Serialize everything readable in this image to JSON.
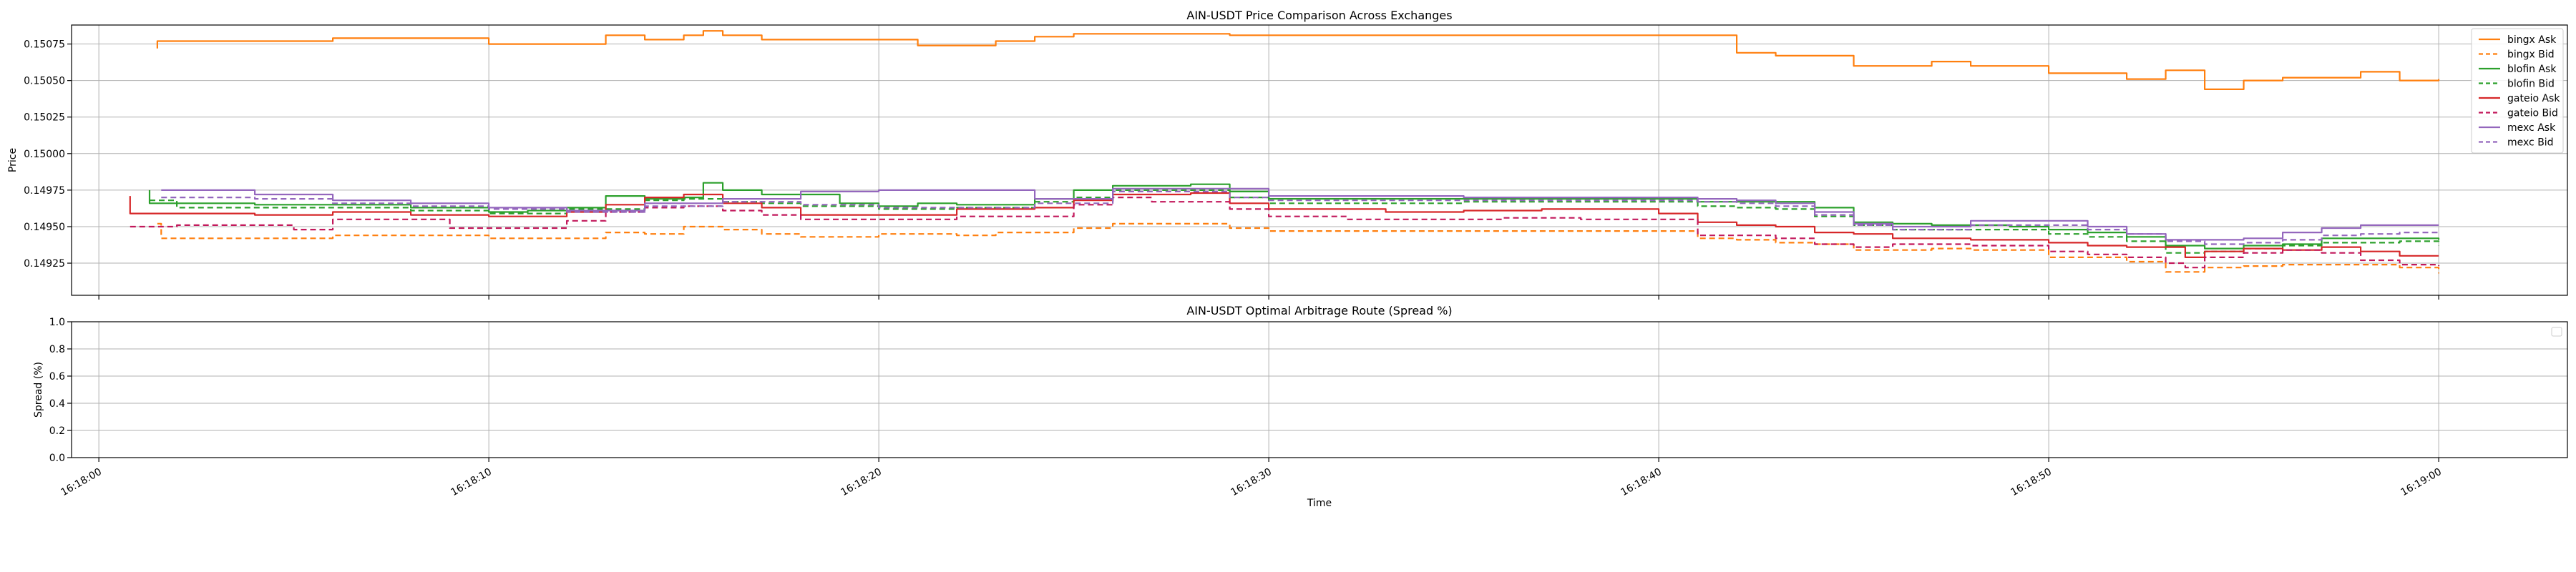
{
  "chart_data": [
    {
      "type": "line",
      "title": "AIN-USDT Price Comparison Across Exchanges",
      "xlabel": "",
      "ylabel": "Price",
      "x_ticks": [
        "16:18:00",
        "16:18:10",
        "16:18:20",
        "16:18:30",
        "16:18:40",
        "16:18:50",
        "16:19:00"
      ],
      "y_ticks": [
        "0.14925",
        "0.14950",
        "0.14975",
        "0.15000",
        "0.15025",
        "0.15050",
        "0.15075"
      ],
      "xlim": [
        "16:17:59.3",
        "16:19:03.3"
      ],
      "ylim": [
        0.14903,
        0.15088
      ],
      "grid": true,
      "legend_position": "top-right",
      "series": [
        {
          "name": "bingx Ask",
          "color": "#ff7f0e",
          "dash": "solid",
          "x": [
            "16:18:01.5",
            "16:18:01.5",
            "16:18:05",
            "16:18:06",
            "16:18:07",
            "16:18:08",
            "16:18:09",
            "16:18:10",
            "16:18:11",
            "16:18:12",
            "16:18:13",
            "16:18:14",
            "16:18:15",
            "16:18:15.5",
            "16:18:16",
            "16:18:17",
            "16:18:18",
            "16:18:19",
            "16:18:20",
            "16:18:21",
            "16:18:22",
            "16:18:23",
            "16:18:24",
            "16:18:25",
            "16:18:26",
            "16:18:27",
            "16:18:28",
            "16:18:29",
            "16:18:30",
            "16:18:35",
            "16:18:40",
            "16:18:41",
            "16:18:42",
            "16:18:43",
            "16:18:44",
            "16:18:45",
            "16:18:46",
            "16:18:47",
            "16:18:48",
            "16:18:49",
            "16:18:50",
            "16:18:51",
            "16:18:52",
            "16:18:53",
            "16:18:54",
            "16:18:55",
            "16:18:56",
            "16:18:57",
            "16:18:58",
            "16:18:59",
            "16:19:00"
          ],
          "y": [
            0.15072,
            0.15077,
            0.15077,
            0.15079,
            0.15079,
            0.15079,
            0.15079,
            0.15075,
            0.15075,
            0.15075,
            0.15081,
            0.15078,
            0.15081,
            0.15084,
            0.15081,
            0.15078,
            0.15078,
            0.15078,
            0.15078,
            0.15074,
            0.15074,
            0.15077,
            0.1508,
            0.15082,
            0.15082,
            0.15082,
            0.15082,
            0.15081,
            0.15081,
            0.15081,
            0.15081,
            0.15081,
            0.15069,
            0.15067,
            0.15067,
            0.1506,
            0.1506,
            0.15063,
            0.1506,
            0.1506,
            0.15055,
            0.15055,
            0.15051,
            0.15057,
            0.15044,
            0.1505,
            0.15052,
            0.15052,
            0.15056,
            0.1505,
            0.15051
          ]
        },
        {
          "name": "bingx Bid",
          "color": "#ff7f0e",
          "dash": "dashed",
          "x": [
            "16:18:01.5",
            "16:18:01.6",
            "16:18:05",
            "16:18:06",
            "16:18:09",
            "16:18:10",
            "16:18:12",
            "16:18:13",
            "16:18:14",
            "16:18:15",
            "16:18:16",
            "16:18:17",
            "16:18:18",
            "16:18:19",
            "16:18:20",
            "16:18:22",
            "16:18:23",
            "16:18:25",
            "16:18:26",
            "16:18:28",
            "16:18:29",
            "16:18:30",
            "16:18:40",
            "16:18:41",
            "16:18:42",
            "16:18:43",
            "16:18:44",
            "16:18:45",
            "16:18:46",
            "16:18:47",
            "16:18:48",
            "16:18:49",
            "16:18:50",
            "16:18:51",
            "16:18:52",
            "16:18:53",
            "16:18:54",
            "16:18:55",
            "16:18:56",
            "16:18:57",
            "16:18:58",
            "16:18:59",
            "16:19:00"
          ],
          "y": [
            0.14952,
            0.14942,
            0.14942,
            0.14944,
            0.14944,
            0.14942,
            0.14942,
            0.14946,
            0.14945,
            0.1495,
            0.14948,
            0.14945,
            0.14943,
            0.14943,
            0.14945,
            0.14944,
            0.14946,
            0.14949,
            0.14952,
            0.14952,
            0.14949,
            0.14947,
            0.14947,
            0.14942,
            0.14941,
            0.14939,
            0.14938,
            0.14934,
            0.14934,
            0.14935,
            0.14934,
            0.14934,
            0.14929,
            0.14929,
            0.14926,
            0.14919,
            0.14922,
            0.14923,
            0.14924,
            0.14924,
            0.14924,
            0.14922,
            0.14918
          ]
        },
        {
          "name": "blofin Ask",
          "color": "#2ca02c",
          "dash": "solid",
          "x": [
            "16:18:01.3",
            "16:18:01.3",
            "16:18:02",
            "16:18:04",
            "16:18:06",
            "16:18:08",
            "16:18:10",
            "16:18:11",
            "16:18:12",
            "16:18:13",
            "16:18:14",
            "16:18:15",
            "16:18:15.5",
            "16:18:16",
            "16:18:17",
            "16:18:18",
            "16:18:19",
            "16:18:20",
            "16:18:21",
            "16:18:22",
            "16:18:23",
            "16:18:24",
            "16:18:25",
            "16:18:26",
            "16:18:27",
            "16:18:28",
            "16:18:29",
            "16:18:30",
            "16:18:35",
            "16:18:40",
            "16:18:41",
            "16:18:42",
            "16:18:43",
            "16:18:44",
            "16:18:45",
            "16:18:46",
            "16:18:47",
            "16:18:48",
            "16:18:49",
            "16:18:50",
            "16:18:51",
            "16:18:52",
            "16:18:53",
            "16:18:54",
            "16:18:55",
            "16:18:56",
            "16:18:57",
            "16:18:58",
            "16:18:59",
            "16:19:00"
          ],
          "y": [
            0.14975,
            0.14966,
            0.14966,
            0.14965,
            0.14965,
            0.14963,
            0.1496,
            0.14961,
            0.14963,
            0.14971,
            0.14969,
            0.1497,
            0.1498,
            0.14975,
            0.14972,
            0.14972,
            0.14966,
            0.14964,
            0.14966,
            0.14965,
            0.14965,
            0.14969,
            0.14975,
            0.14978,
            0.14978,
            0.14979,
            0.14974,
            0.14969,
            0.14969,
            0.14969,
            0.14967,
            0.14967,
            0.14967,
            0.14963,
            0.14953,
            0.14952,
            0.14951,
            0.14951,
            0.1495,
            0.14948,
            0.14946,
            0.14943,
            0.14937,
            0.14935,
            0.14937,
            0.14938,
            0.14942,
            0.14942,
            0.14942,
            0.14941
          ]
        },
        {
          "name": "blofin Bid",
          "color": "#2ca02c",
          "dash": "dashed",
          "x": [
            "16:18:01.3",
            "16:18:02",
            "16:18:04",
            "16:18:06",
            "16:18:08",
            "16:18:10",
            "16:18:12",
            "16:18:14",
            "16:18:15",
            "16:18:16",
            "16:18:17",
            "16:18:18",
            "16:18:20",
            "16:18:22",
            "16:18:24",
            "16:18:25",
            "16:18:26",
            "16:18:28",
            "16:18:29",
            "16:18:30",
            "16:18:35",
            "16:18:40",
            "16:18:41",
            "16:18:42",
            "16:18:43",
            "16:18:44",
            "16:18:45",
            "16:18:46",
            "16:18:48",
            "16:18:50",
            "16:18:51",
            "16:18:52",
            "16:18:53",
            "16:18:54",
            "16:18:55",
            "16:18:56",
            "16:18:57",
            "16:18:58",
            "16:18:59",
            "16:19:00"
          ],
          "y": [
            0.14968,
            0.14963,
            0.14963,
            0.14963,
            0.14961,
            0.14959,
            0.14962,
            0.14968,
            0.14969,
            0.14967,
            0.14966,
            0.14964,
            0.14962,
            0.14963,
            0.14967,
            0.1497,
            0.14975,
            0.14975,
            0.1497,
            0.14966,
            0.14967,
            0.14967,
            0.14964,
            0.14963,
            0.14962,
            0.14957,
            0.14951,
            0.14948,
            0.14948,
            0.14945,
            0.14943,
            0.1494,
            0.14932,
            0.14933,
            0.14935,
            0.14937,
            0.14939,
            0.14939,
            0.1494,
            0.14937
          ]
        },
        {
          "name": "gateio Ask",
          "color": "#d62728",
          "dash": "solid",
          "x": [
            "16:18:00.8",
            "16:18:00.8",
            "16:18:02",
            "16:18:04",
            "16:18:06",
            "16:18:08",
            "16:18:10",
            "16:18:12",
            "16:18:13",
            "16:18:14",
            "16:18:15",
            "16:18:16",
            "16:18:17",
            "16:18:18",
            "16:18:20",
            "16:18:22",
            "16:18:24",
            "16:18:25",
            "16:18:26",
            "16:18:28",
            "16:18:29",
            "16:18:30",
            "16:18:33",
            "16:18:35",
            "16:18:37",
            "16:18:39",
            "16:18:40",
            "16:18:41",
            "16:18:42",
            "16:18:43",
            "16:18:44",
            "16:18:45",
            "16:18:46",
            "16:18:48",
            "16:18:50",
            "16:18:51",
            "16:18:52",
            "16:18:53",
            "16:18:53.5",
            "16:18:54",
            "16:18:55",
            "16:18:56",
            "16:18:57",
            "16:18:58",
            "16:18:59",
            "16:19:00"
          ],
          "y": [
            0.14971,
            0.14959,
            0.14959,
            0.14958,
            0.1496,
            0.14958,
            0.14957,
            0.1496,
            0.14965,
            0.1497,
            0.14972,
            0.14966,
            0.14963,
            0.14958,
            0.14958,
            0.14962,
            0.14963,
            0.14968,
            0.14972,
            0.14973,
            0.14966,
            0.14962,
            0.1496,
            0.14961,
            0.14962,
            0.14962,
            0.14959,
            0.14953,
            0.14951,
            0.1495,
            0.14946,
            0.14945,
            0.14942,
            0.14941,
            0.14939,
            0.14937,
            0.14936,
            0.14936,
            0.14929,
            0.14933,
            0.14935,
            0.14934,
            0.14936,
            0.14933,
            0.1493,
            0.1493
          ]
        },
        {
          "name": "gateio Bid",
          "color": "#c2185b",
          "dash": "dashed",
          "x": [
            "16:18:00.8",
            "16:18:02",
            "16:18:04",
            "16:18:05",
            "16:18:06",
            "16:18:08",
            "16:18:09",
            "16:18:10",
            "16:18:12",
            "16:18:13",
            "16:18:14",
            "16:18:15",
            "16:18:16",
            "16:18:17",
            "16:18:18",
            "16:18:20",
            "16:18:22",
            "16:18:24",
            "16:18:25",
            "16:18:26",
            "16:18:27",
            "16:18:28",
            "16:18:29",
            "16:18:30",
            "16:18:32",
            "16:18:34",
            "16:18:36",
            "16:18:38",
            "16:18:40",
            "16:18:41",
            "16:18:42",
            "16:18:43",
            "16:18:44",
            "16:18:45",
            "16:18:46",
            "16:18:47",
            "16:18:48",
            "16:18:50",
            "16:18:51",
            "16:18:52",
            "16:18:53",
            "16:18:53.5",
            "16:18:54",
            "16:18:55",
            "16:18:56",
            "16:18:57",
            "16:18:58",
            "16:18:59",
            "16:19:00"
          ],
          "y": [
            0.1495,
            0.14951,
            0.14951,
            0.14948,
            0.14955,
            0.14955,
            0.14949,
            0.14949,
            0.14954,
            0.1496,
            0.14963,
            0.14964,
            0.14961,
            0.14958,
            0.14955,
            0.14955,
            0.14957,
            0.14957,
            0.14965,
            0.1497,
            0.14967,
            0.14967,
            0.14962,
            0.14957,
            0.14955,
            0.14955,
            0.14956,
            0.14955,
            0.14955,
            0.14944,
            0.14944,
            0.14942,
            0.14938,
            0.14936,
            0.14938,
            0.14938,
            0.14937,
            0.14933,
            0.14931,
            0.14929,
            0.14925,
            0.14922,
            0.14929,
            0.14932,
            0.14934,
            0.14932,
            0.14927,
            0.14924,
            0.14923
          ]
        },
        {
          "name": "mexc Ask",
          "color": "#9467bd",
          "dash": "solid",
          "x": [
            "16:18:01.6",
            "16:18:04",
            "16:18:06",
            "16:18:08",
            "16:18:10",
            "16:18:12",
            "16:18:14",
            "16:18:16",
            "16:18:18",
            "16:18:20",
            "16:18:22",
            "16:18:24",
            "16:18:26",
            "16:18:28",
            "16:18:30",
            "16:18:35",
            "16:18:40",
            "16:18:41",
            "16:18:42",
            "16:18:43",
            "16:18:44",
            "16:18:45",
            "16:18:46",
            "16:18:48",
            "16:18:50",
            "16:18:51",
            "16:18:52",
            "16:18:53",
            "16:18:54",
            "16:18:55",
            "16:18:56",
            "16:18:57",
            "16:18:58",
            "16:18:59",
            "16:19:00"
          ],
          "y": [
            0.14975,
            0.14972,
            0.14968,
            0.14966,
            0.14963,
            0.14961,
            0.14966,
            0.14969,
            0.14974,
            0.14975,
            0.14975,
            0.14969,
            0.14976,
            0.14976,
            0.14971,
            0.1497,
            0.1497,
            0.14969,
            0.14968,
            0.14966,
            0.1496,
            0.14952,
            0.1495,
            0.14954,
            0.14954,
            0.1495,
            0.14945,
            0.14941,
            0.14941,
            0.14942,
            0.14946,
            0.14949,
            0.14951,
            0.14951,
            0.14951
          ]
        },
        {
          "name": "mexc Bid",
          "color": "#9467bd",
          "dash": "dashed",
          "x": [
            "16:18:01.6",
            "16:18:04",
            "16:18:06",
            "16:18:08",
            "16:18:10",
            "16:18:12",
            "16:18:14",
            "16:18:16",
            "16:18:18",
            "16:18:20",
            "16:18:22",
            "16:18:24",
            "16:18:26",
            "16:18:28",
            "16:18:29",
            "16:18:30",
            "16:18:35",
            "16:18:40",
            "16:18:41",
            "16:18:42",
            "16:18:43",
            "16:18:44",
            "16:18:45",
            "16:18:46",
            "16:18:48",
            "16:18:50",
            "16:18:51",
            "16:18:52",
            "16:18:53",
            "16:18:54",
            "16:18:55",
            "16:18:56",
            "16:18:57",
            "16:18:58",
            "16:18:59",
            "16:19:00"
          ],
          "y": [
            0.1497,
            0.14969,
            0.14966,
            0.14964,
            0.14962,
            0.1496,
            0.14964,
            0.14967,
            0.14965,
            0.14963,
            0.14963,
            0.14966,
            0.14974,
            0.14974,
            0.1497,
            0.14968,
            0.14968,
            0.14968,
            0.14967,
            0.14966,
            0.14964,
            0.14958,
            0.14951,
            0.14948,
            0.14951,
            0.14951,
            0.14948,
            0.14945,
            0.1494,
            0.14938,
            0.14939,
            0.14941,
            0.14944,
            0.14945,
            0.14946,
            0.14946
          ]
        }
      ]
    },
    {
      "type": "line",
      "title": "AIN-USDT Optimal Arbitrage Route (Spread %)",
      "xlabel": "Time",
      "ylabel": "Spread (%)",
      "x_ticks": [
        "16:18:00",
        "16:18:10",
        "16:18:20",
        "16:18:30",
        "16:18:40",
        "16:18:50",
        "16:19:00"
      ],
      "y_ticks": [
        "0.0",
        "0.2",
        "0.4",
        "0.6",
        "0.8",
        "1.0"
      ],
      "ylim": [
        0,
        1
      ],
      "grid": true,
      "legend_position": "top-right",
      "series": []
    }
  ]
}
